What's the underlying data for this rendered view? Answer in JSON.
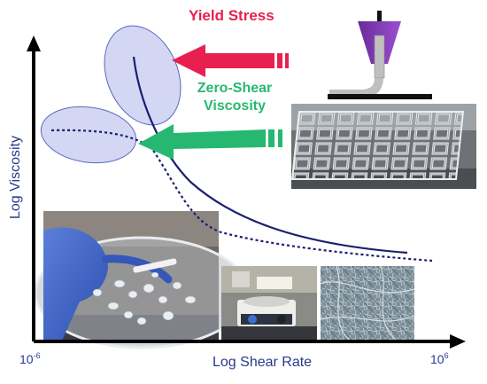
{
  "labels": {
    "yield_stress": "Yield Stress",
    "zero_shear_viscosity": "Zero-Shear Viscosity",
    "y_axis": "Log Viscosity",
    "x_axis": "Log Shear Rate",
    "x_min_base": "10",
    "x_min_exp": "-6",
    "x_max_base": "10",
    "x_max_exp": "6"
  },
  "colors": {
    "axis": "#000000",
    "curve": "#1b1f6e",
    "yield_arrow": "#e8204f",
    "zero_shear_arrow": "#26b870",
    "ellipse_fill": "#c9cdf0",
    "ellipse_stroke": "#5a66c0"
  },
  "photos": [
    {
      "name": "printer-nozzle-illustration",
      "subject": "extrusion nozzle with syringe plunger"
    },
    {
      "name": "printed-lattice-photo",
      "subject": "3D printed transparent grid lattice"
    },
    {
      "name": "petri-dish-photo",
      "subject": "gloved hand holding petri dish with gel droplets"
    },
    {
      "name": "lab-stirrer-photo",
      "subject": "magnetic stirrer hotplate in lab"
    },
    {
      "name": "microscopy-photo",
      "subject": "electron micrograph of fibrous network"
    }
  ]
}
